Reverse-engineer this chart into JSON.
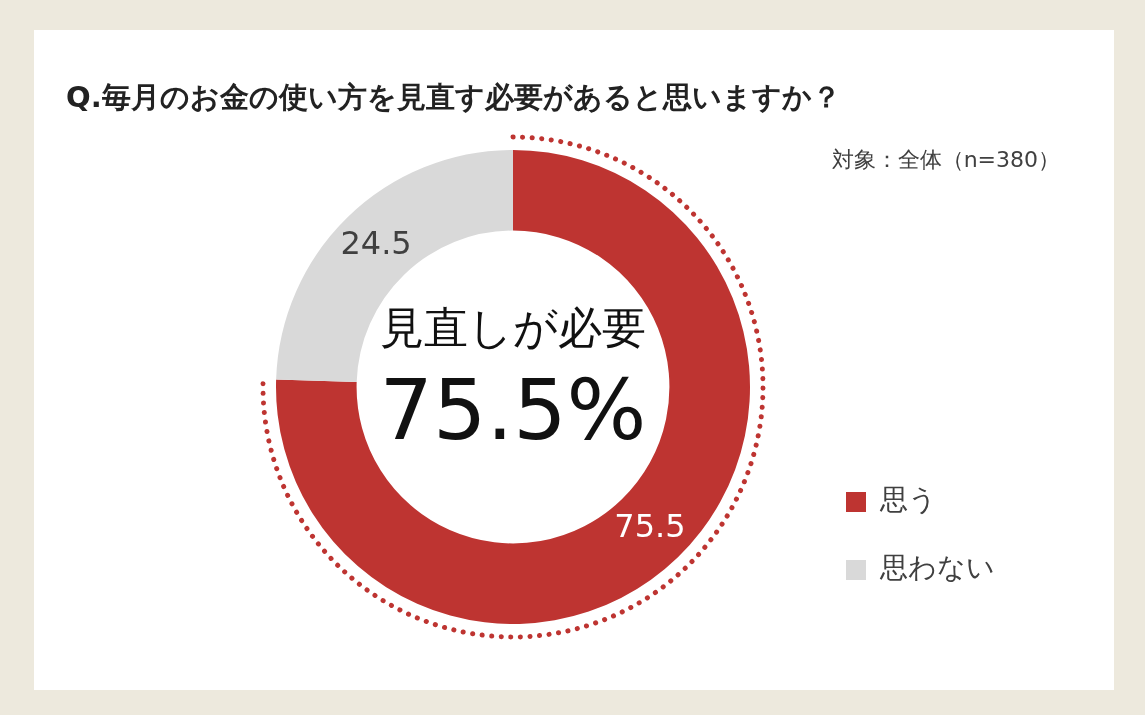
{
  "chart_data": {
    "type": "donut",
    "title": "Q.毎月のお金の使い方を見直す必要があると思いますか？",
    "subtitle": "対象：全体（n=380）",
    "categories": [
      "思う",
      "思わない"
    ],
    "values": [
      75.5,
      24.5
    ],
    "colors": [
      "#be3431",
      "#d9d9d9"
    ],
    "data_labels": true,
    "legend": "right",
    "annotations": [
      "見直しが必要",
      "75.5%"
    ]
  }
}
